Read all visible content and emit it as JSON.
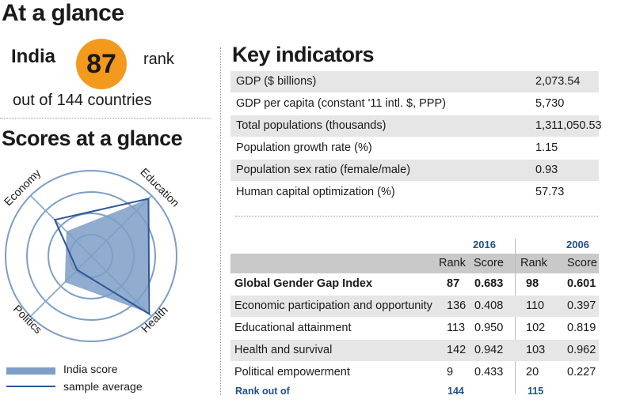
{
  "header": {
    "title": "At a glance",
    "country": "India",
    "rank": "87",
    "rank_word": "rank",
    "out_of": "out of 144 countries"
  },
  "scores_title": "Scores at a glance",
  "key_indicators": {
    "title": "Key indicators",
    "rows": [
      {
        "label": "GDP ($ billions)",
        "value": "2,073.54"
      },
      {
        "label": "GDP per capita (constant '11 intl. $, PPP)",
        "value": "5,730"
      },
      {
        "label": "Total populations (thousands)",
        "value": "1,311,050.53"
      },
      {
        "label": "Population growth rate (%)",
        "value": "1.15"
      },
      {
        "label": "Population sex ratio (female/male)",
        "value": "0.93"
      },
      {
        "label": "Human capital optimization (%)",
        "value": "57.73"
      }
    ]
  },
  "gap_table": {
    "year_a": "2016",
    "year_b": "2006",
    "col_rank": "Rank",
    "col_score": "Score",
    "rows": [
      {
        "label": "Global Gender Gap Index",
        "rank_a": "87",
        "score_a": "0.683",
        "rank_b": "98",
        "score_b": "0.601",
        "bold": true
      },
      {
        "label": "Economic participation and opportunity",
        "rank_a": "136",
        "score_a": "0.408",
        "rank_b": "110",
        "score_b": "0.397"
      },
      {
        "label": "Educational attainment",
        "rank_a": "113",
        "score_a": "0.950",
        "rank_b": "102",
        "score_b": "0.819"
      },
      {
        "label": "Health and survival",
        "rank_a": "142",
        "score_a": "0.942",
        "rank_b": "103",
        "score_b": "0.962"
      },
      {
        "label": "Political empowerment",
        "rank_a": "9",
        "score_a": "0.433",
        "rank_b": "20",
        "score_b": "0.227"
      }
    ],
    "rank_out_of_label": "Rank out of",
    "rank_out_of_a": "144",
    "rank_out_of_b": "115"
  },
  "chart_data": {
    "type": "radar",
    "axes": [
      "Economy",
      "Education",
      "Health",
      "Politics"
    ],
    "range": [
      0,
      1
    ],
    "grid": true,
    "series": [
      {
        "name": "India score",
        "values": [
          0.408,
          0.95,
          0.942,
          0.433
        ],
        "color": "#7c9ec7"
      },
      {
        "name": "sample average",
        "values": [
          0.6,
          0.95,
          0.96,
          0.23
        ],
        "color": "#2e5597"
      }
    ],
    "legend_placement": "bottom-left"
  }
}
